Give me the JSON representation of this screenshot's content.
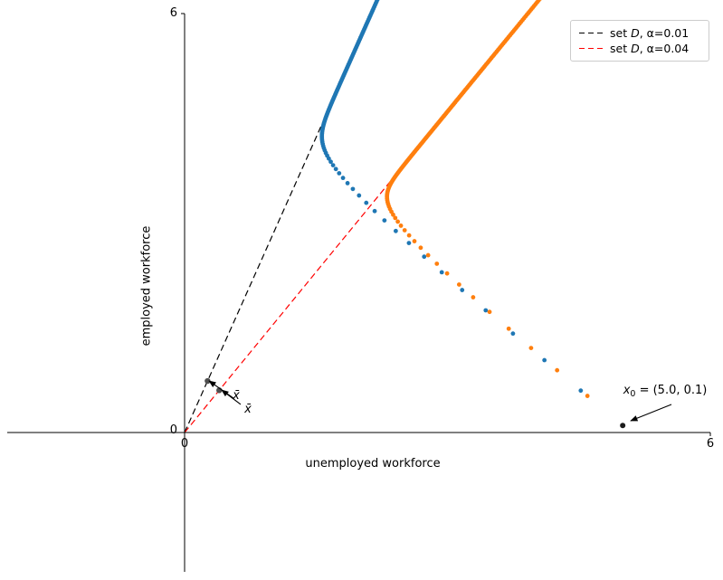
{
  "figure": {
    "background": "#ffffff"
  },
  "axes": {
    "xlabel": "unemployed workforce",
    "ylabel": "employed workforce",
    "xtick_labels": [
      "0",
      "6"
    ],
    "ytick_labels": [
      "0",
      "6"
    ]
  },
  "legend": {
    "entries": [
      {
        "prefix": "set ",
        "var": "D",
        "suffix": ", α=0.01",
        "color": "#000000",
        "linestyle": "dashed"
      },
      {
        "prefix": "set ",
        "var": "D",
        "suffix": ", α=0.04",
        "color": "#ff0000",
        "linestyle": "dashed"
      }
    ]
  },
  "annotations": {
    "x0": {
      "var": "x",
      "sub": "0",
      "rest": " = (5.0, 0.1)",
      "point": [
        5.0,
        0.1
      ],
      "label_at": [
        5.484,
        0.57
      ],
      "arrow_from": [
        5.556,
        0.402
      ],
      "arrow_to": [
        5.091,
        0.168
      ]
    },
    "xbar1": {
      "text": "x̄",
      "point": [
        0.262,
        0.738
      ],
      "label_at": [
        0.589,
        0.518
      ],
      "arrow_from": [
        0.558,
        0.492
      ],
      "arrow_to": [
        0.279,
        0.739
      ]
    },
    "xbar2": {
      "text": "x̄",
      "point": [
        0.395,
        0.605
      ],
      "label_at": [
        0.723,
        0.324
      ],
      "arrow_from": [
        0.64,
        0.402
      ],
      "arrow_to": [
        0.423,
        0.609
      ]
    }
  },
  "chart_data": {
    "type": "scatter",
    "title": "",
    "xlabel": "unemployed workforce",
    "ylabel": "employed workforce",
    "xlim": [
      -2.02,
      6
    ],
    "ylim": [
      -2.0,
      6
    ],
    "xticks": [
      0,
      6
    ],
    "yticks": [
      0,
      6
    ],
    "grid": false,
    "legend_position": "upper right",
    "x0": [
      5.0,
      0.1
    ],
    "x0_color": "#1c1c1c",
    "xbar_color": "#4f4f4f",
    "xbar_points": [
      [
        0.262,
        0.738
      ],
      [
        0.395,
        0.605
      ]
    ],
    "rays": [
      {
        "name": "set D, α=0.01",
        "color": "#000000",
        "direction": [
          0.262,
          0.738
        ]
      },
      {
        "name": "set D, α=0.04",
        "color": "#ff0000",
        "direction": [
          0.395,
          0.605
        ]
      }
    ],
    "series": [
      {
        "name": "trajectory α=0.01",
        "color": "#1f77b4",
        "marker_radius": 2.4,
        "recurrence": {
          "a": 5.1,
          "growth": 1.0042,
          "dir": [
            0.262,
            0.738
          ],
          "b": 3.6638,
          "decay": 0.8678,
          "trans_dir": [
            1,
            -1
          ],
          "steps": 175
        },
        "first_points": [
          [
            5.0,
            0.1
          ],
          [
            4.521,
            0.6
          ],
          [
            4.107,
            1.036
          ],
          [
            3.748,
            1.417
          ],
          [
            3.437,
            1.75
          ],
          [
            3.168,
            2.04
          ],
          [
            2.935,
            2.295
          ]
        ]
      },
      {
        "name": "trajectory α=0.04",
        "color": "#ff7f0e",
        "marker_radius": 2.4,
        "recurrence": {
          "a": 5.1,
          "growth": 1.0042,
          "dir": [
            0.395,
            0.605
          ],
          "b": 2.9855,
          "decay": 0.8623,
          "trans_dir": [
            1,
            -1
          ],
          "steps": 175
        },
        "first_points": [
          [
            5.0,
            0.1
          ],
          [
            4.597,
            0.524
          ],
          [
            4.251,
            0.892
          ],
          [
            3.954,
            1.21
          ],
          [
            3.699,
            1.487
          ],
          [
            3.48,
            1.728
          ],
          [
            3.293,
            1.937
          ]
        ]
      }
    ]
  }
}
